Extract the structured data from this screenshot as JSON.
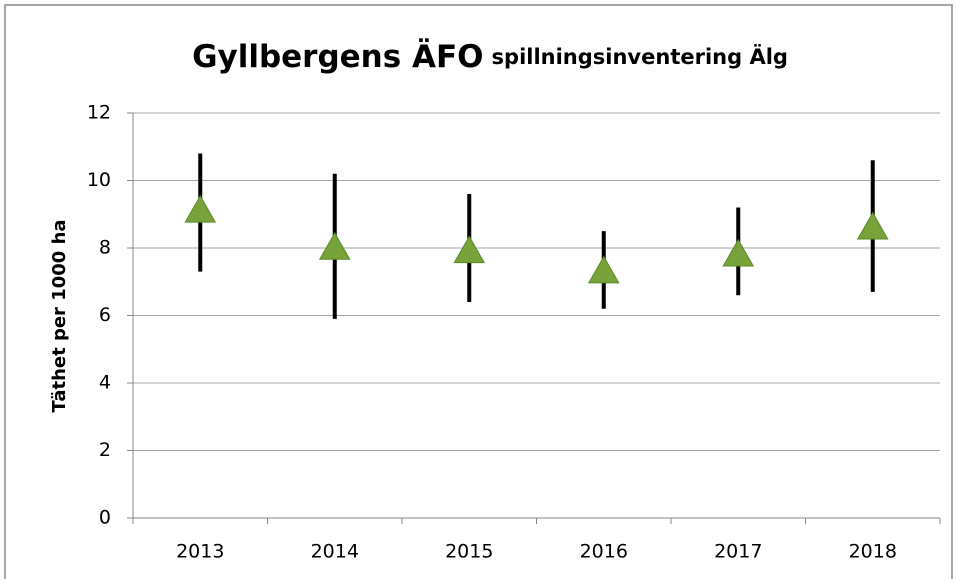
{
  "chart_data": {
    "type": "errorbar",
    "title": "Gyllbergens ÄFO",
    "subtitle": "spillningsinventering Älg",
    "y_label": "Täthet per 1000 ha",
    "categories": [
      "2013",
      "2014",
      "2015",
      "2016",
      "2017",
      "2018"
    ],
    "values": [
      9.1,
      8.0,
      7.9,
      7.3,
      7.8,
      8.6
    ],
    "high": [
      10.8,
      10.2,
      9.6,
      8.5,
      9.2,
      10.6
    ],
    "low": [
      7.3,
      5.9,
      6.4,
      6.2,
      6.6,
      6.7
    ],
    "color": "#77a33a",
    "errorbar_color": "#000000",
    "ylim": [
      0,
      12
    ],
    "yticks": [
      0,
      2,
      4,
      6,
      8,
      10,
      12
    ],
    "grid": true
  }
}
